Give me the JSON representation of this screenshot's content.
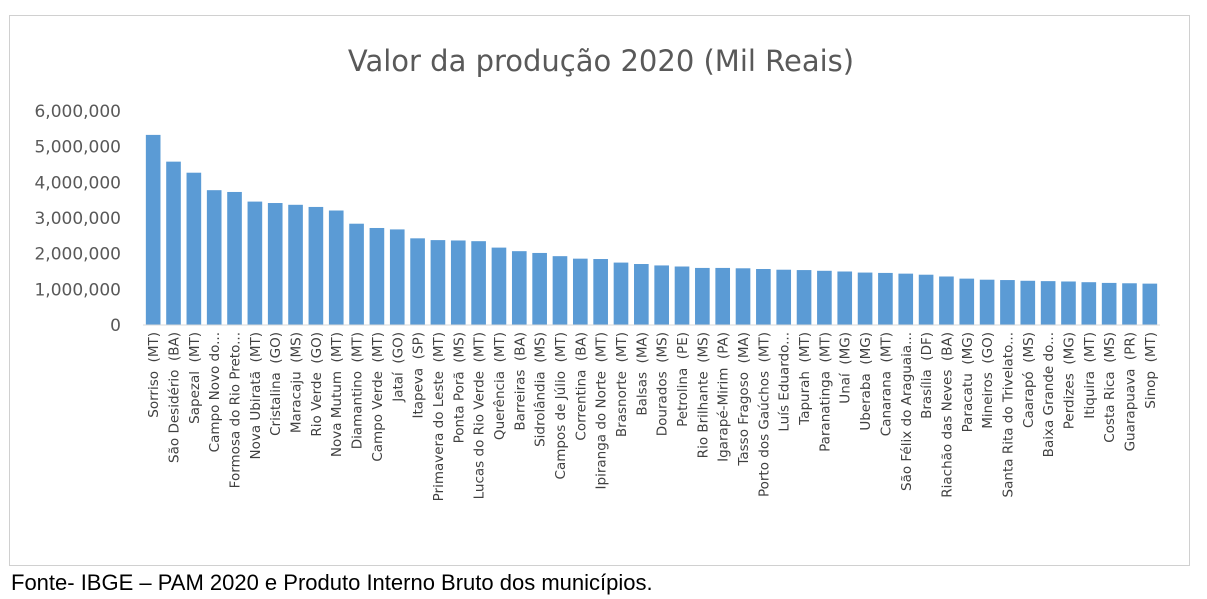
{
  "source_note": "Fonte- IBGE – PAM 2020 e Produto Interno Bruto dos municípios.",
  "chart_data": {
    "type": "bar",
    "title": "Valor da produção 2020 (Mil Reais)",
    "xlabel": "",
    "ylabel": "",
    "ylim": [
      0,
      6000000
    ],
    "yticks": [
      0,
      1000000,
      2000000,
      3000000,
      4000000,
      5000000,
      6000000
    ],
    "ytick_labels": [
      "0",
      "1,000,000",
      "2,000,000",
      "3,000,000",
      "4,000,000",
      "5,000,000",
      "6,000,000"
    ],
    "grid": false,
    "bar_color": "#5b9bd5",
    "categories": [
      "Sorriso  (MT)",
      "São Desidério  (BA)",
      "Sapezal  (MT)",
      "Campo Novo do...",
      "Formosa do Rio Preto...",
      "Nova Ubiratã  (MT)",
      "Cristalina  (GO)",
      "Maracaju  (MS)",
      "Rio Verde  (GO)",
      "Nova Mutum  (MT)",
      "Diamantino  (MT)",
      "Campo Verde  (MT)",
      "Jataí  (GO)",
      "Itapeva  (SP)",
      "Primavera do Leste  (MT)",
      "Ponta Porã  (MS)",
      "Lucas do Rio Verde  (MT)",
      "Querência  (MT)",
      "Barreiras  (BA)",
      "Sidrolândia  (MS)",
      "Campos de Júlio  (MT)",
      "Correntina  (BA)",
      "Ipiranga do Norte  (MT)",
      "Brasnorte  (MT)",
      "Balsas  (MA)",
      "Dourados  (MS)",
      "Petrolina  (PE)",
      "Rio Brilhante  (MS)",
      "Igarapé-Mirim  (PA)",
      "Tasso Fragoso  (MA)",
      "Porto dos Gaúchos  (MT)",
      "Luís Eduardo...",
      "Tapurah  (MT)",
      "Paranatinga  (MT)",
      "Unaí  (MG)",
      "Uberaba  (MG)",
      "Canarana  (MT)",
      "São Félix do Araguaia...",
      "Brasília  (DF)",
      "Riachão das Neves  (BA)",
      "Paracatu  (MG)",
      "Mineiros  (GO)",
      "Santa Rita do Trivelato...",
      "Caarapó  (MS)",
      "Baixa Grande do...",
      "Perdizes  (MG)",
      "Itiquira  (MT)",
      "Costa Rica  (MS)",
      "Guarapuava  (PR)",
      "Sinop  (MT)"
    ],
    "values": [
      5330000,
      4580000,
      4270000,
      3780000,
      3730000,
      3460000,
      3420000,
      3370000,
      3310000,
      3210000,
      2840000,
      2720000,
      2680000,
      2430000,
      2380000,
      2370000,
      2350000,
      2170000,
      2070000,
      2020000,
      1930000,
      1860000,
      1850000,
      1750000,
      1710000,
      1670000,
      1640000,
      1600000,
      1600000,
      1590000,
      1570000,
      1550000,
      1540000,
      1520000,
      1500000,
      1470000,
      1460000,
      1440000,
      1410000,
      1360000,
      1300000,
      1270000,
      1260000,
      1240000,
      1230000,
      1220000,
      1200000,
      1180000,
      1170000,
      1160000
    ]
  }
}
